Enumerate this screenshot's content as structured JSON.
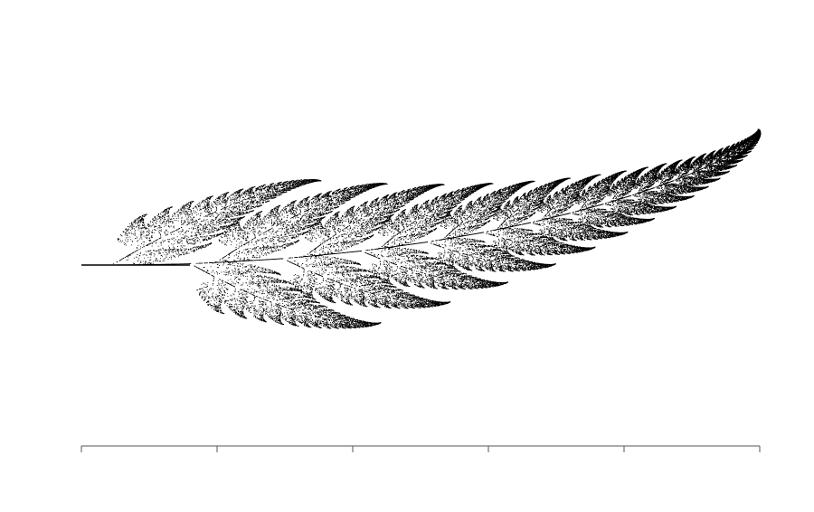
{
  "figure": {
    "subject": "fern-leaf",
    "background_color": "#ffffff",
    "ink_color": "#000000",
    "axis_color": "#555555",
    "axis_tick_count": 6
  }
}
